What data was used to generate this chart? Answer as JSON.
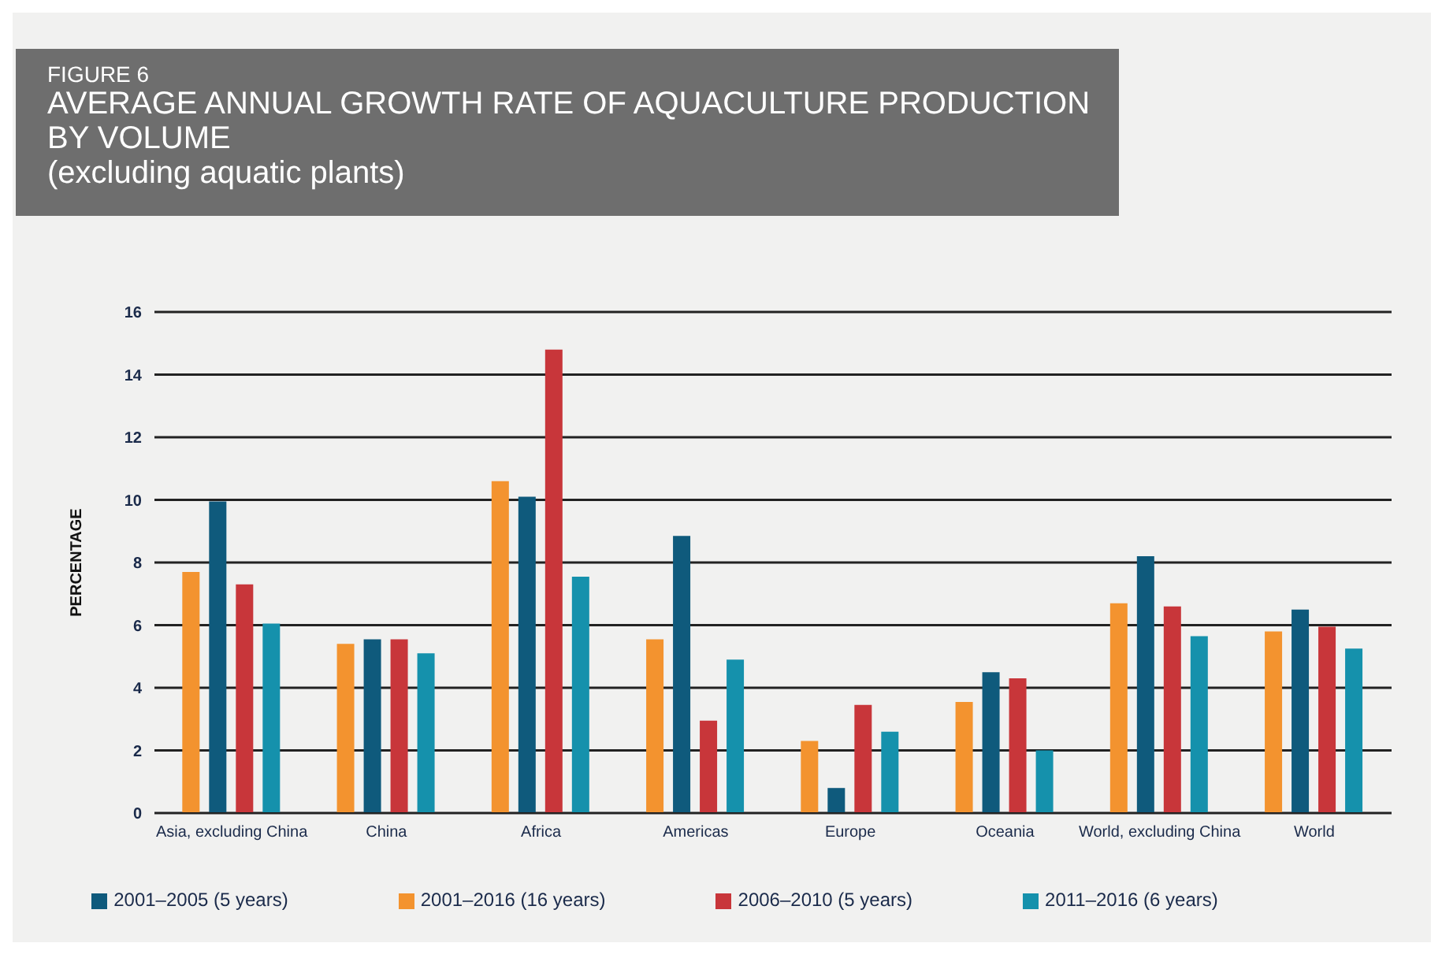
{
  "chart_data": {
    "type": "bar",
    "title": "FIGURE 6",
    "subtitle": "AVERAGE ANNUAL GROWTH RATE OF AQUACULTURE PRODUCTION BY VOLUME\n(excluding aquatic plants)",
    "ylabel": "PERCENTAGE",
    "categories": [
      "Asia, excluding China",
      "China",
      "Africa",
      "Americas",
      "Europe",
      "Oceania",
      "World, excluding China",
      "World"
    ],
    "series": [
      {
        "name": "2001–2016 (16 years)",
        "color": "#f3932f",
        "values": [
          7.7,
          5.4,
          10.6,
          5.55,
          2.3,
          3.55,
          6.7,
          5.8
        ]
      },
      {
        "name": "2001–2005 (5 years)",
        "color": "#0f5a7c",
        "values": [
          9.95,
          5.55,
          10.1,
          8.85,
          0.8,
          4.5,
          8.2,
          6.5
        ]
      },
      {
        "name": "2006–2010 (5 years)",
        "color": "#c8363a",
        "values": [
          7.3,
          5.55,
          14.8,
          2.95,
          3.45,
          4.3,
          6.6,
          5.95
        ]
      },
      {
        "name": "2011–2016 (6 years)",
        "color": "#1591ac",
        "values": [
          6.05,
          5.1,
          7.55,
          4.9,
          2.6,
          2.0,
          5.65,
          5.25
        ]
      }
    ],
    "ylim": [
      0,
      16
    ],
    "yticks": [
      0,
      2,
      4,
      6,
      8,
      10,
      12,
      14,
      16
    ],
    "grid": "y",
    "legend": "bottom"
  }
}
